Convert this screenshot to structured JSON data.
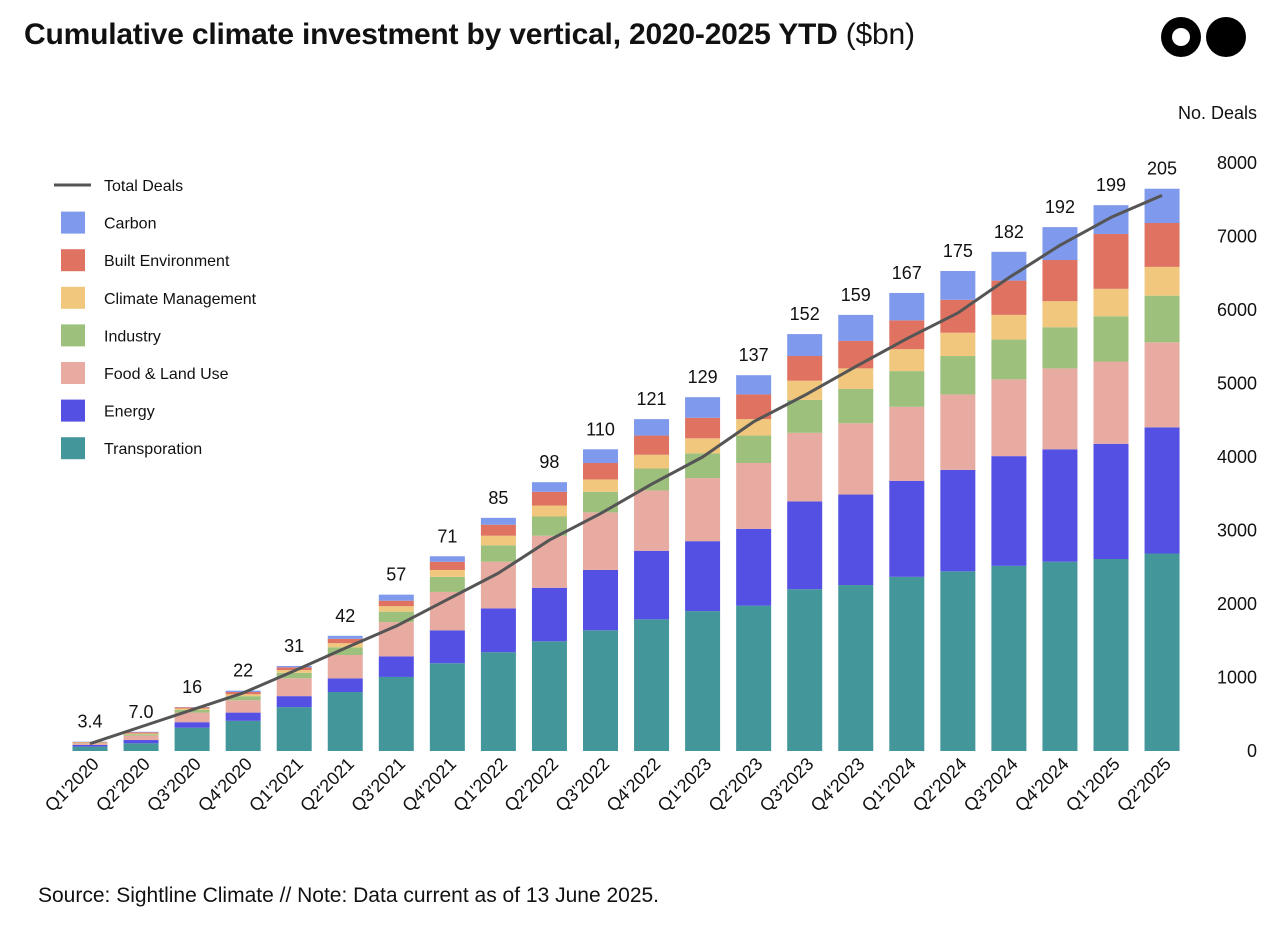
{
  "header": {
    "title": "Cumulative climate investment by vertical, 2020-2025 YTD",
    "unit": "($bn)"
  },
  "logo": {
    "icon": "two-circles-logo-icon"
  },
  "footer": {
    "source": "Source: Sightline Climate  //  Note: Data current as of 13 June 2025."
  },
  "chart_data": {
    "type": "bar",
    "stacked": true,
    "title": "Cumulative climate investment by vertical, 2020-2025 YTD ($bn)",
    "xlabel": "",
    "ylabel": "$bn",
    "y2label": "No. Deals",
    "ylim": [
      0,
      215
    ],
    "y2lim": [
      0,
      8000
    ],
    "y2ticks": [
      0,
      1000,
      2000,
      3000,
      4000,
      5000,
      6000,
      7000,
      8000
    ],
    "grid": false,
    "legend_position": "top-left",
    "categories": [
      "Q1'2020",
      "Q2'2020",
      "Q3'2020",
      "Q4'2020",
      "Q1'2021",
      "Q2'2021",
      "Q3'2021",
      "Q4'2021",
      "Q1'2022",
      "Q2'2022",
      "Q3'2022",
      "Q4'2022",
      "Q1'2023",
      "Q2'2023",
      "Q3'2023",
      "Q4'2023",
      "Q1'2024",
      "Q2'2024",
      "Q3'2024",
      "Q4'2024",
      "Q1'2025",
      "Q2'2025"
    ],
    "totals_labels": [
      "3.4",
      "7.0",
      "16",
      "22",
      "31",
      "42",
      "57",
      "71",
      "85",
      "98",
      "110",
      "121",
      "129",
      "137",
      "152",
      "159",
      "167",
      "175",
      "182",
      "192",
      "199",
      "205"
    ],
    "series": [
      {
        "name": "Transporation",
        "color": "#43979b",
        "values": [
          1.6,
          2.8,
          8.5,
          11,
          16,
          21.5,
          27,
          32,
          36,
          40,
          44,
          48,
          51,
          53,
          59,
          60.5,
          63.5,
          65.5,
          67.5,
          69,
          70,
          72
        ]
      },
      {
        "name": "Energy",
        "color": "#5450e4",
        "values": [
          0.6,
          1.2,
          2.0,
          3.0,
          4.0,
          5.0,
          7.5,
          12,
          16,
          19.5,
          22,
          25,
          25.5,
          28,
          32,
          33,
          35,
          37,
          40,
          41,
          42,
          46
        ]
      },
      {
        "name": "Food & Land Use",
        "color": "#e8aba1",
        "values": [
          0.6,
          1.6,
          3.5,
          4.5,
          6.5,
          8.5,
          12.5,
          14,
          17,
          19,
          21,
          22,
          23,
          24,
          25,
          26,
          27,
          27.5,
          28,
          29.5,
          30,
          31
        ]
      },
      {
        "name": "Industry",
        "color": "#9dc07c",
        "values": [
          0.2,
          0.5,
          1.0,
          1.5,
          2.0,
          2.8,
          3.8,
          5.5,
          6.0,
          7.0,
          7.5,
          8.0,
          9.0,
          10,
          12,
          12.5,
          13,
          14,
          14.5,
          15,
          16.5,
          17
        ]
      },
      {
        "name": "Climate Management",
        "color": "#f0c77d",
        "values": [
          0.1,
          0.3,
          0.5,
          0.7,
          1.0,
          1.5,
          2.0,
          2.5,
          3.5,
          4.0,
          4.5,
          5.0,
          5.5,
          6.0,
          7.0,
          7.5,
          8.0,
          8.5,
          9.0,
          9.5,
          10,
          10.5
        ]
      },
      {
        "name": "Built Environment",
        "color": "#df7261",
        "values": [
          0.2,
          0.4,
          0.4,
          0.8,
          1.0,
          1.6,
          2.0,
          3.0,
          4.0,
          5.0,
          6.0,
          7.0,
          7.5,
          9.0,
          9.0,
          10,
          10.5,
          12,
          12.5,
          15,
          20,
          16
        ]
      },
      {
        "name": "Carbon",
        "color": "#7f99ec",
        "values": [
          0.1,
          0.2,
          0.1,
          0.5,
          0.5,
          1.1,
          2.2,
          2.0,
          2.5,
          3.5,
          5.0,
          6.0,
          7.5,
          7.0,
          8.0,
          9.5,
          10,
          10.5,
          10.5,
          12,
          10.5,
          12.5
        ]
      }
    ],
    "line_series": {
      "name": "Total Deals",
      "axis": "right",
      "color": "#555555",
      "values": [
        100,
        330,
        560,
        790,
        1090,
        1400,
        1700,
        2060,
        2420,
        2870,
        3230,
        3630,
        4000,
        4480,
        4840,
        5230,
        5610,
        5960,
        6440,
        6880,
        7260,
        7560
      ]
    }
  }
}
